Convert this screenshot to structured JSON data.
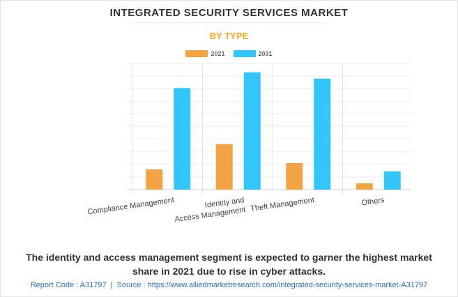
{
  "title": "INTEGRATED SECURITY SERVICES MARKET",
  "subtitle": "BY TYPE",
  "caption_line1": "The identity and access management segment is expected to garner the highest market",
  "caption_line2": "share in 2021 due to rise in cyber attacks.",
  "footer": "Report Code : A31797  |  Source : https://www.alliedmarketresearch.com/integrated-security-services-market-A31797",
  "colors": {
    "2021": "#f2a444",
    "2031": "#33c6fd",
    "title": "#333333",
    "subtitle": "#f5a623",
    "footer": "#2a6ebb"
  },
  "chart_data": {
    "type": "bar",
    "title": "BY TYPE",
    "xlabel": "",
    "ylabel": "",
    "categories": [
      [
        "Compliance Management"
      ],
      [
        "Identity and",
        "Access Management"
      ],
      [
        "Theft Management"
      ],
      [
        "Others"
      ]
    ],
    "series": [
      {
        "name": "2021",
        "values": [
          1.6,
          3.6,
          2.1,
          0.5
        ]
      },
      {
        "name": "2031",
        "values": [
          8.05,
          9.3,
          8.8,
          1.45
        ]
      }
    ],
    "ylim": [
      0,
      10
    ],
    "y_tick_labels_shown": false,
    "grid": true,
    "legend_placement": "top"
  }
}
